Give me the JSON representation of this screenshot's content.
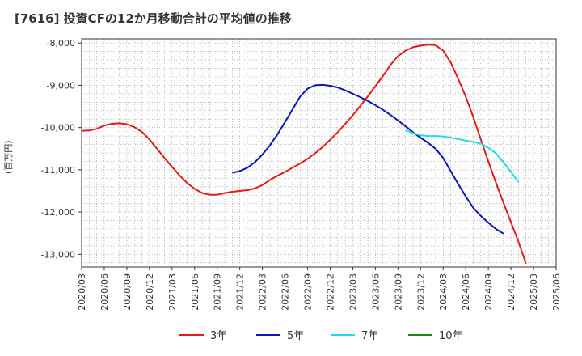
{
  "chart_data": {
    "type": "line",
    "title": "[7616]  投資CFの12か月移動合計の平均値の推移",
    "ylabel": "(百万円)",
    "ylim": [
      -13300,
      -7900
    ],
    "yticks": [
      -8000,
      -9000,
      -10000,
      -11000,
      -12000,
      -13000
    ],
    "ytick_labels": [
      "-8,000",
      "-9,000",
      "-10,000",
      "-11,000",
      "-12,000",
      "-13,000"
    ],
    "xlim": [
      "2020/03",
      "2025/06"
    ],
    "xtick_labels": [
      "2020/03",
      "2020/06",
      "2020/09",
      "2020/12",
      "2021/03",
      "2021/06",
      "2021/09",
      "2021/12",
      "2022/03",
      "2022/06",
      "2022/09",
      "2022/12",
      "2023/03",
      "2023/06",
      "2023/09",
      "2023/12",
      "2024/03",
      "2024/06",
      "2024/09",
      "2024/12",
      "2025/03",
      "2025/06"
    ],
    "grid": true,
    "legend_position": "bottom",
    "series": [
      {
        "name": "3年",
        "color": "#e41a1c",
        "points": [
          [
            "2020/03",
            -10080
          ],
          [
            "2020/04",
            -10070
          ],
          [
            "2020/05",
            -10030
          ],
          [
            "2020/06",
            -9950
          ],
          [
            "2020/07",
            -9910
          ],
          [
            "2020/08",
            -9900
          ],
          [
            "2020/09",
            -9920
          ],
          [
            "2020/10",
            -9990
          ],
          [
            "2020/11",
            -10100
          ],
          [
            "2020/12",
            -10280
          ],
          [
            "2021/01",
            -10500
          ],
          [
            "2021/02",
            -10720
          ],
          [
            "2021/03",
            -10930
          ],
          [
            "2021/04",
            -11130
          ],
          [
            "2021/05",
            -11310
          ],
          [
            "2021/06",
            -11450
          ],
          [
            "2021/07",
            -11550
          ],
          [
            "2021/08",
            -11590
          ],
          [
            "2021/09",
            -11590
          ],
          [
            "2021/10",
            -11550
          ],
          [
            "2021/11",
            -11520
          ],
          [
            "2021/12",
            -11500
          ],
          [
            "2022/01",
            -11480
          ],
          [
            "2022/02",
            -11440
          ],
          [
            "2022/03",
            -11360
          ],
          [
            "2022/04",
            -11240
          ],
          [
            "2022/05",
            -11140
          ],
          [
            "2022/06",
            -11050
          ],
          [
            "2022/07",
            -10950
          ],
          [
            "2022/08",
            -10850
          ],
          [
            "2022/09",
            -10740
          ],
          [
            "2022/10",
            -10610
          ],
          [
            "2022/11",
            -10460
          ],
          [
            "2022/12",
            -10290
          ],
          [
            "2023/01",
            -10110
          ],
          [
            "2023/02",
            -9910
          ],
          [
            "2023/03",
            -9710
          ],
          [
            "2023/04",
            -9490
          ],
          [
            "2023/05",
            -9260
          ],
          [
            "2023/06",
            -9020
          ],
          [
            "2023/07",
            -8780
          ],
          [
            "2023/08",
            -8520
          ],
          [
            "2023/09",
            -8310
          ],
          [
            "2023/10",
            -8180
          ],
          [
            "2023/11",
            -8100
          ],
          [
            "2023/12",
            -8060
          ],
          [
            "2024/01",
            -8040
          ],
          [
            "2024/02",
            -8050
          ],
          [
            "2024/03",
            -8180
          ],
          [
            "2024/04",
            -8460
          ],
          [
            "2024/05",
            -8850
          ],
          [
            "2024/06",
            -9270
          ],
          [
            "2024/07",
            -9750
          ],
          [
            "2024/08",
            -10280
          ],
          [
            "2024/09",
            -10800
          ],
          [
            "2024/10",
            -11300
          ],
          [
            "2024/11",
            -11780
          ],
          [
            "2024/12",
            -12240
          ],
          [
            "2025/01",
            -12700
          ],
          [
            "2025/02",
            -13220
          ]
        ]
      },
      {
        "name": "5年",
        "color": "#0b16b8",
        "points": [
          [
            "2021/11",
            -11070
          ],
          [
            "2021/12",
            -11030
          ],
          [
            "2022/01",
            -10950
          ],
          [
            "2022/02",
            -10820
          ],
          [
            "2022/03",
            -10640
          ],
          [
            "2022/04",
            -10420
          ],
          [
            "2022/05",
            -10160
          ],
          [
            "2022/06",
            -9870
          ],
          [
            "2022/07",
            -9570
          ],
          [
            "2022/08",
            -9270
          ],
          [
            "2022/09",
            -9080
          ],
          [
            "2022/10",
            -9000
          ],
          [
            "2022/11",
            -8990
          ],
          [
            "2022/12",
            -9010
          ],
          [
            "2023/01",
            -9050
          ],
          [
            "2023/02",
            -9120
          ],
          [
            "2023/03",
            -9200
          ],
          [
            "2023/04",
            -9280
          ],
          [
            "2023/05",
            -9370
          ],
          [
            "2023/06",
            -9470
          ],
          [
            "2023/07",
            -9580
          ],
          [
            "2023/08",
            -9700
          ],
          [
            "2023/09",
            -9830
          ],
          [
            "2023/10",
            -9970
          ],
          [
            "2023/11",
            -10110
          ],
          [
            "2023/12",
            -10240
          ],
          [
            "2024/01",
            -10360
          ],
          [
            "2024/02",
            -10500
          ],
          [
            "2024/03",
            -10720
          ],
          [
            "2024/04",
            -11030
          ],
          [
            "2024/05",
            -11340
          ],
          [
            "2024/06",
            -11630
          ],
          [
            "2024/07",
            -11900
          ],
          [
            "2024/08",
            -12090
          ],
          [
            "2024/09",
            -12250
          ],
          [
            "2024/10",
            -12400
          ],
          [
            "2024/11",
            -12510
          ]
        ]
      },
      {
        "name": "7年",
        "color": "#22dbe6",
        "points": [
          [
            "2023/10",
            -10060
          ],
          [
            "2023/11",
            -10130
          ],
          [
            "2023/12",
            -10180
          ],
          [
            "2024/01",
            -10200
          ],
          [
            "2024/02",
            -10200
          ],
          [
            "2024/03",
            -10210
          ],
          [
            "2024/04",
            -10240
          ],
          [
            "2024/05",
            -10270
          ],
          [
            "2024/06",
            -10310
          ],
          [
            "2024/07",
            -10340
          ],
          [
            "2024/08",
            -10380
          ],
          [
            "2024/09",
            -10480
          ],
          [
            "2024/10",
            -10610
          ],
          [
            "2024/11",
            -10820
          ],
          [
            "2024/12",
            -11050
          ],
          [
            "2025/01",
            -11290
          ]
        ]
      },
      {
        "name": "10年",
        "color": "#1a8a1a",
        "points": []
      }
    ]
  }
}
